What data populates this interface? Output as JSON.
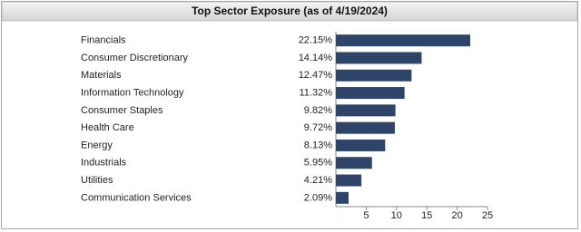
{
  "chart_data": {
    "type": "bar",
    "orientation": "horizontal",
    "title": "Top Sector Exposure (as of 4/19/2024)",
    "categories": [
      "Financials",
      "Consumer Discretionary",
      "Materials",
      "Information Technology",
      "Consumer Staples",
      "Health Care",
      "Energy",
      "Industrials",
      "Utilities",
      "Communication Services"
    ],
    "values": [
      22.15,
      14.14,
      12.47,
      11.32,
      9.82,
      9.72,
      8.13,
      5.95,
      4.21,
      2.09
    ],
    "value_labels": [
      "22.15%",
      "14.14%",
      "12.47%",
      "11.32%",
      "9.82%",
      "9.72%",
      "8.13%",
      "5.95%",
      "4.21%",
      "2.09%"
    ],
    "color": "#2e4468",
    "xlim": [
      0,
      25
    ],
    "xticks": [
      5,
      10,
      15,
      20,
      25
    ]
  }
}
